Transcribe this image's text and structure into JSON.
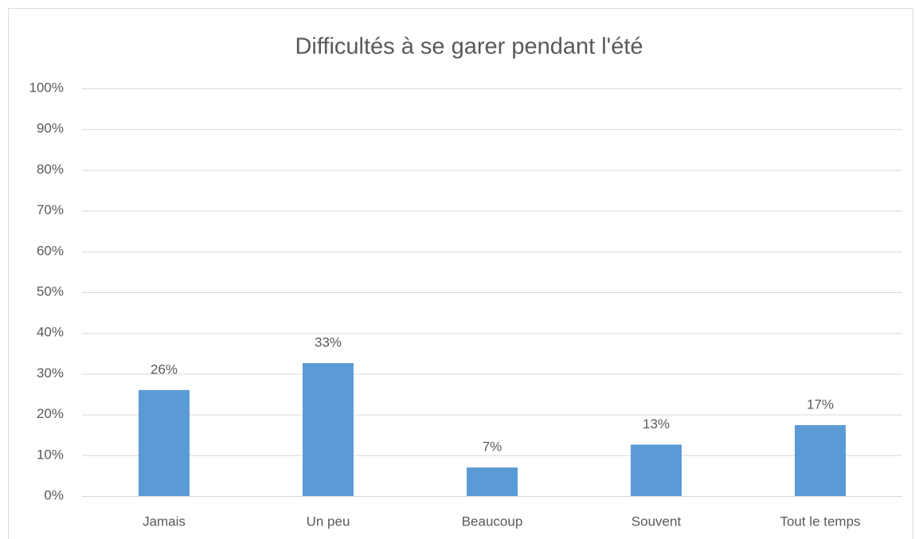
{
  "chart_data": {
    "type": "bar",
    "title": "Difficultés à se garer pendant l'été",
    "categories": [
      "Jamais",
      "Un peu",
      "Beaucoup",
      "Souvent",
      "Tout le temps"
    ],
    "values": [
      26,
      32.6,
      7,
      12.6,
      17.4
    ],
    "value_labels": [
      "26%",
      "33%",
      "7%",
      "13%",
      "17%"
    ],
    "color": "#5b9bd5",
    "ylim": [
      0,
      100
    ],
    "yticks": [
      {
        "value": 0,
        "label": "0%"
      },
      {
        "value": 10,
        "label": "10%"
      },
      {
        "value": 20,
        "label": "20%"
      },
      {
        "value": 30,
        "label": "30%"
      },
      {
        "value": 40,
        "label": "40%"
      },
      {
        "value": 50,
        "label": "50%"
      },
      {
        "value": 60,
        "label": "60%"
      },
      {
        "value": 70,
        "label": "70%"
      },
      {
        "value": 80,
        "label": "80%"
      },
      {
        "value": 90,
        "label": "90%"
      },
      {
        "value": 100,
        "label": "100%"
      }
    ],
    "grid": true
  }
}
